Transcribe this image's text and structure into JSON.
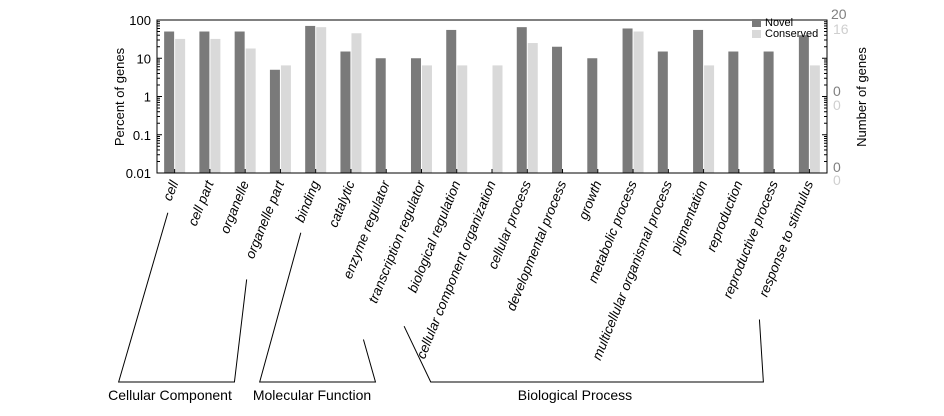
{
  "chart_data": {
    "type": "bar",
    "title": "",
    "xlabel": "",
    "ylabel": "Percent of genes",
    "y2label": "Number of genes",
    "yscale": "log",
    "ylim": [
      0.01,
      100
    ],
    "yticks": [
      "0.01",
      "0.1",
      "1",
      "10",
      "100"
    ],
    "y2ticks_novel": [
      "20",
      "0"
    ],
    "y2ticks_conserved": [
      "16",
      "0"
    ],
    "y2ticks_extra": [
      "0",
      "0",
      "0"
    ],
    "legend_position": "top-right",
    "categories": [
      "cell",
      "cell part",
      "organelle",
      "organelle part",
      "binding",
      "catalytic",
      "enzyme regulator",
      "transcription regulator",
      "biological regulation",
      "cellular component organization",
      "cellular process",
      "developmental process",
      "growth",
      "metabolic process",
      "multicellular organismal process",
      "pigmentation",
      "reproduction",
      "reproductive process",
      "response to stimulus"
    ],
    "series": [
      {
        "name": "Novel",
        "color": "#7a7a7a",
        "values": [
          50,
          50,
          50,
          5,
          70,
          15,
          10,
          10,
          55,
          null,
          65,
          20,
          10,
          60,
          15,
          55,
          15,
          15,
          40
        ]
      },
      {
        "name": "Conserved",
        "color": "#d9d9d9",
        "values": [
          32,
          32,
          18,
          6.5,
          65,
          45,
          null,
          6.5,
          6.5,
          6.5,
          25,
          null,
          null,
          50,
          null,
          6.5,
          null,
          null,
          6.5
        ]
      }
    ],
    "groups": [
      {
        "label": "Cellular Component",
        "start": 0,
        "end": 3
      },
      {
        "label": "Molecular Function",
        "start": 4,
        "end": 7
      },
      {
        "label": "Biological Process",
        "start": 8,
        "end": 18
      }
    ]
  }
}
